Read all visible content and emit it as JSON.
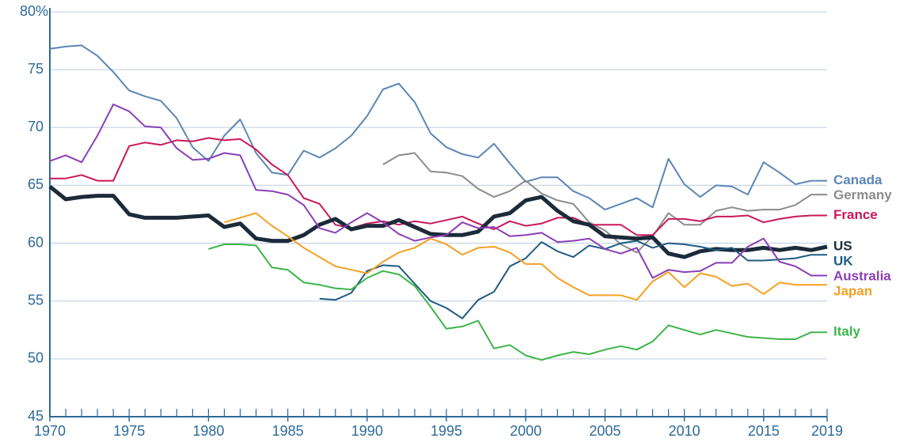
{
  "chart_data": {
    "type": "line",
    "x": [
      1970,
      1971,
      1972,
      1973,
      1974,
      1975,
      1976,
      1977,
      1978,
      1979,
      1980,
      1981,
      1982,
      1983,
      1984,
      1985,
      1986,
      1987,
      1988,
      1989,
      1990,
      1991,
      1992,
      1993,
      1994,
      1995,
      1996,
      1997,
      1998,
      1999,
      2000,
      2001,
      2002,
      2003,
      2004,
      2005,
      2006,
      2007,
      2008,
      2009,
      2010,
      2011,
      2012,
      2013,
      2014,
      2015,
      2016,
      2017,
      2018,
      2019
    ],
    "xlim": [
      1970,
      2019
    ],
    "xticks": [
      1970,
      1975,
      1980,
      1985,
      1990,
      1995,
      2000,
      2005,
      2010,
      2015,
      2019
    ],
    "ylim": [
      45,
      80
    ],
    "yticks": [
      45,
      50,
      55,
      60,
      65,
      70,
      75,
      {
        "value": 80,
        "label": "80%"
      }
    ],
    "grid": true,
    "series": [
      {
        "name": "Canada",
        "color": "#5b86b5",
        "values": [
          76.8,
          77.0,
          77.1,
          76.2,
          74.8,
          73.2,
          72.7,
          72.3,
          70.8,
          68.3,
          67.1,
          69.3,
          70.7,
          67.8,
          66.1,
          65.9,
          68.0,
          67.4,
          68.2,
          69.3,
          71.0,
          73.3,
          73.8,
          72.2,
          69.5,
          68.3,
          67.7,
          67.4,
          68.6,
          66.9,
          65.3,
          65.7,
          65.7,
          64.5,
          63.9,
          62.9,
          63.4,
          63.9,
          63.1,
          67.3,
          65.1,
          64.0,
          65.0,
          64.9,
          64.2,
          67.0,
          66.1,
          65.1,
          65.4,
          65.4
        ]
      },
      {
        "name": "Germany",
        "color": "#8c8c8c",
        "values": [
          null,
          null,
          null,
          null,
          null,
          null,
          null,
          null,
          null,
          null,
          null,
          null,
          null,
          null,
          null,
          null,
          null,
          null,
          null,
          null,
          null,
          66.8,
          67.6,
          67.8,
          66.2,
          66.1,
          65.8,
          64.7,
          64.0,
          64.5,
          65.4,
          64.3,
          63.7,
          63.4,
          61.8,
          61.1,
          59.9,
          59.2,
          60.6,
          62.6,
          61.6,
          61.6,
          62.8,
          63.1,
          62.8,
          62.9,
          62.9,
          63.3,
          64.2,
          64.2
        ]
      },
      {
        "name": "France",
        "color": "#c8185a",
        "values": [
          65.6,
          65.6,
          65.9,
          65.4,
          65.4,
          68.4,
          68.7,
          68.5,
          68.9,
          68.8,
          69.1,
          68.9,
          69.0,
          68.1,
          66.8,
          65.9,
          63.9,
          63.4,
          61.6,
          61.3,
          61.7,
          61.9,
          61.6,
          61.9,
          61.7,
          62.0,
          62.3,
          61.7,
          61.2,
          61.9,
          61.5,
          61.7,
          62.2,
          62.2,
          61.6,
          61.6,
          61.6,
          60.7,
          60.7,
          62.1,
          62.1,
          61.9,
          62.3,
          62.3,
          62.4,
          61.8,
          62.1,
          62.3,
          62.4,
          62.4
        ]
      },
      {
        "name": "US",
        "color": "#1c2b3a",
        "values": [
          64.9,
          63.8,
          64.0,
          64.1,
          64.1,
          62.5,
          62.2,
          62.2,
          62.2,
          62.3,
          62.4,
          61.4,
          61.7,
          60.4,
          60.2,
          60.2,
          60.7,
          61.6,
          62.1,
          61.2,
          61.5,
          61.5,
          62.0,
          61.4,
          60.8,
          60.7,
          60.7,
          61.0,
          62.3,
          62.6,
          63.7,
          64.0,
          62.8,
          61.9,
          61.6,
          60.6,
          60.5,
          60.4,
          60.5,
          59.1,
          58.8,
          59.3,
          59.5,
          59.4,
          59.4,
          59.6,
          59.4,
          59.6,
          59.4,
          59.7
        ]
      },
      {
        "name": "UK",
        "color": "#1f5b82",
        "values": [
          null,
          null,
          null,
          null,
          null,
          null,
          null,
          null,
          null,
          null,
          null,
          null,
          null,
          null,
          null,
          null,
          null,
          55.2,
          55.1,
          55.7,
          57.6,
          58.1,
          58.0,
          56.5,
          55.0,
          54.4,
          53.5,
          55.1,
          55.8,
          58.0,
          58.7,
          60.1,
          59.3,
          58.8,
          59.8,
          59.5,
          60.0,
          60.2,
          59.6,
          60.0,
          59.9,
          59.7,
          59.4,
          59.6,
          58.5,
          58.5,
          58.6,
          58.7,
          59.0,
          59.0
        ]
      },
      {
        "name": "Australia",
        "color": "#8a3fb5",
        "values": [
          67.1,
          67.6,
          67.0,
          69.3,
          72.0,
          71.4,
          70.1,
          70.0,
          68.2,
          67.2,
          67.3,
          67.8,
          67.6,
          64.6,
          64.5,
          64.2,
          63.3,
          61.3,
          60.9,
          61.8,
          62.6,
          61.8,
          60.8,
          60.2,
          60.5,
          60.7,
          61.8,
          61.3,
          61.4,
          60.6,
          60.7,
          60.9,
          60.1,
          60.2,
          60.4,
          59.5,
          59.1,
          59.6,
          57.0,
          57.7,
          57.5,
          57.6,
          58.3,
          58.3,
          59.7,
          60.4,
          58.4,
          58.0,
          57.2,
          57.2
        ]
      },
      {
        "name": "Japan",
        "color": "#f5a024",
        "values": [
          null,
          null,
          null,
          null,
          null,
          null,
          null,
          null,
          null,
          null,
          null,
          61.8,
          62.2,
          62.6,
          61.5,
          60.6,
          59.6,
          58.8,
          58.0,
          57.7,
          57.4,
          58.4,
          59.2,
          59.6,
          60.4,
          59.9,
          59.0,
          59.6,
          59.7,
          59.2,
          58.2,
          58.2,
          57.0,
          56.2,
          55.5,
          55.5,
          55.5,
          55.1,
          56.7,
          57.5,
          56.2,
          57.4,
          57.1,
          56.3,
          56.5,
          55.6,
          56.6,
          56.4,
          56.4,
          56.4
        ]
      },
      {
        "name": "Italy",
        "color": "#3db54a",
        "values": [
          null,
          null,
          null,
          null,
          null,
          null,
          null,
          null,
          null,
          null,
          59.5,
          59.9,
          59.9,
          59.8,
          57.9,
          57.7,
          56.6,
          56.4,
          56.1,
          56.0,
          57.0,
          57.6,
          57.3,
          56.3,
          54.5,
          52.6,
          52.8,
          53.3,
          50.9,
          51.2,
          50.3,
          49.9,
          50.3,
          50.6,
          50.4,
          50.8,
          51.1,
          50.8,
          51.5,
          52.9,
          52.5,
          52.1,
          52.5,
          52.2,
          51.9,
          51.8,
          51.7,
          51.7,
          52.3,
          52.3
        ]
      }
    ]
  }
}
